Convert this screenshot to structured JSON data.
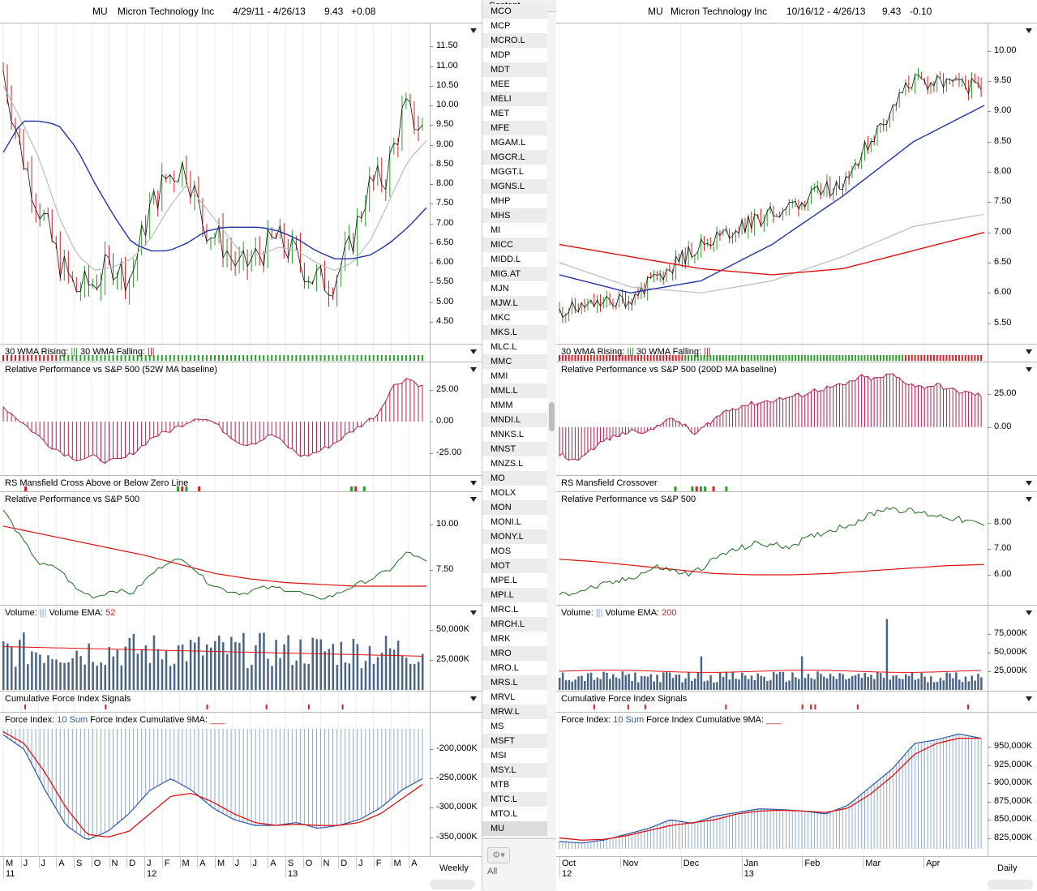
{
  "list": {
    "header": "Content",
    "items": [
      "MCO",
      "MCP",
      "MCRO.L",
      "MDP",
      "MDT",
      "MEE",
      "MELI",
      "MET",
      "MFE",
      "MGAM.L",
      "MGCR.L",
      "MGGT.L",
      "MGNS.L",
      "MHP",
      "MHS",
      "MI",
      "MICC",
      "MIDD.L",
      "MIG.AT",
      "MJN",
      "MJW.L",
      "MKC",
      "MKS.L",
      "MLC.L",
      "MMC",
      "MMI",
      "MML.L",
      "MMM",
      "MNDI.L",
      "MNKS.L",
      "MNST",
      "MNZS.L",
      "MO",
      "MOLX",
      "MON",
      "MONI.L",
      "MONY.L",
      "MOS",
      "MOT",
      "MPE.L",
      "MPI.L",
      "MRC.L",
      "MRCH.L",
      "MRK",
      "MRO",
      "MRO.L",
      "MRS.L",
      "MRVL",
      "MRW.L",
      "MS",
      "MSFT",
      "MSI",
      "MSY.L",
      "MTB",
      "MTC.L",
      "MTO.L",
      "MU"
    ],
    "selected": "MU",
    "all_label": "All"
  },
  "left": {
    "symbol": "MU",
    "name": "Micron Technology Inc",
    "range": "4/29/11 - 4/26/13",
    "price": "9.43",
    "change": "+0.08",
    "period": "Weekly",
    "price_ticks": [
      "11.50",
      "11.00",
      "10.50",
      "10.00",
      "9.50",
      "9.00",
      "8.50",
      "8.00",
      "7.50",
      "7.00",
      "6.50",
      "6.00",
      "5.50",
      "5.00",
      "4.50"
    ],
    "wma_label": "30 WMA Rising:",
    "wma_label2": "30 WMA Falling:",
    "rp1_label": "Relative Performance vs S&P 500 (52W MA baseline)",
    "rp1_ticks": [
      "25.00",
      "0.00",
      "-25.00"
    ],
    "mans_label": "RS Mansfield Cross Above or Below Zero Line",
    "rp2_label": "Relative Performance vs S&P 500",
    "rp2_ticks": [
      "10.00",
      "7.50"
    ],
    "vol_label": "Volume:",
    "vol_ema_label": "Volume EMA:",
    "vol_ema_value": "52",
    "vol_ticks": [
      "50,000K",
      "25,000K"
    ],
    "cfi_label": "Cumulative Force Index Signals",
    "fi_label": "Force Index:",
    "fi_sum": "10 Sum",
    "fi_cum_label": "Force Index Cumulative 9MA:",
    "fi_ticks": [
      "-200,000K",
      "-250,000K",
      "-300,000K",
      "-350,000K"
    ],
    "months": [
      "M",
      "J",
      "J",
      "A",
      "S",
      "O",
      "N",
      "D",
      "J",
      "F",
      "M",
      "A",
      "M",
      "J",
      "J",
      "A",
      "S",
      "O",
      "N",
      "D",
      "J",
      "F",
      "M",
      "A"
    ],
    "years": [
      "11",
      "12",
      "13"
    ]
  },
  "right": {
    "symbol": "MU",
    "name": "Micron Technology Inc",
    "range": "10/16/12 - 4/26/13",
    "price": "9.43",
    "change": "-0.10",
    "period": "Daily",
    "price_ticks": [
      "10.00",
      "9.50",
      "9.00",
      "8.50",
      "8.00",
      "7.50",
      "7.00",
      "6.50",
      "6.00",
      "5.50"
    ],
    "wma_label": "30 WMA Rising:",
    "wma_label2": "30 WMA Falling:",
    "rp1_label": "Relative Performance vs S&P 500 (200D MA baseline)",
    "rp1_ticks": [
      "25.00",
      "0.00"
    ],
    "mans_label": "RS Mansfield Crossover",
    "rp2_label": "Relative Performance vs S&P 500",
    "rp2_ticks": [
      "8.00",
      "7.00",
      "6.00"
    ],
    "vol_label": "Volume:",
    "vol_ema_label": "Volume EMA:",
    "vol_ema_value": "200",
    "vol_ticks": [
      "75,000K",
      "50,000K",
      "25,000K"
    ],
    "cfi_label": "Cumulative Force Index Signals",
    "fi_label": "Force Index:",
    "fi_sum": "10 Sum",
    "fi_cum_label": "Force Index Cumulative 9MA:",
    "fi_ticks": [
      "950,000K",
      "925,000K",
      "900,000K",
      "875,000K",
      "850,000K",
      "825,000K"
    ],
    "months": [
      "Oct",
      "Nov",
      "Dec",
      "Jan",
      "Feb",
      "Mar",
      "Apr"
    ],
    "years": [
      "12",
      "13"
    ]
  },
  "colors": {
    "up": "#2a9d2a",
    "down": "#d42020",
    "ma_blue": "#2233aa",
    "ma_gray": "#bbbbbb",
    "ma_red": "#dd1111",
    "rp_bar": "#b0204a",
    "rp_line": "#1e6b1e",
    "vol_bar": "#4a6484",
    "fi_bar": "#6f8fb8",
    "fi_line": "#2a5aa8"
  },
  "chart_data": [
    {
      "type": "line",
      "title": "MU Micron Technology Inc 4/29/11 - 4/26/13 (Weekly)",
      "x": [
        "2011-05",
        "2011-06",
        "2011-07",
        "2011-08",
        "2011-09",
        "2011-10",
        "2011-11",
        "2011-12",
        "2012-01",
        "2012-02",
        "2012-03",
        "2012-04",
        "2012-05",
        "2012-06",
        "2012-07",
        "2012-08",
        "2012-09",
        "2012-10",
        "2012-11",
        "2012-12",
        "2013-01",
        "2013-02",
        "2013-03",
        "2013-04"
      ],
      "series": [
        {
          "values": [
            10.9,
            8.8,
            7.4,
            6.1,
            5.3,
            5.5,
            6.0,
            5.6,
            7.3,
            8.2,
            8.5,
            7.0,
            6.5,
            5.8,
            6.2,
            6.6,
            6.2,
            5.6,
            5.5,
            6.3,
            7.9,
            8.2,
            9.9,
            9.4
          ]
        },
        {
          "values": [
            8.8,
            9.6,
            9.6,
            9.5,
            8.9,
            8.0,
            7.2,
            6.5,
            6.3,
            6.3,
            6.5,
            6.8,
            6.9,
            6.9,
            6.9,
            6.8,
            6.6,
            6.3,
            6.1,
            6.1,
            6.2,
            6.5,
            6.9,
            7.4
          ]
        }
      ],
      "ylim": [
        4.0,
        12.0
      ]
    },
    {
      "type": "line",
      "title": "MU Micron Technology Inc 10/16/12 - 4/26/13 (Daily)",
      "x": [
        "2012-10",
        "2012-11",
        "2012-12",
        "2013-01",
        "2013-02",
        "2013-03",
        "2013-04"
      ],
      "series": [
        {
          "values": [
            5.7,
            5.9,
            6.8,
            7.3,
            7.8,
            9.5,
            9.4
          ]
        },
        {
          "values": [
            6.3,
            6.0,
            6.2,
            6.8,
            7.6,
            8.5,
            9.1
          ]
        },
        {
          "values": [
            6.8,
            6.6,
            6.4,
            6.3,
            6.4,
            6.7,
            7.0
          ]
        }
      ],
      "ylim": [
        5.2,
        10.4
      ]
    }
  ]
}
